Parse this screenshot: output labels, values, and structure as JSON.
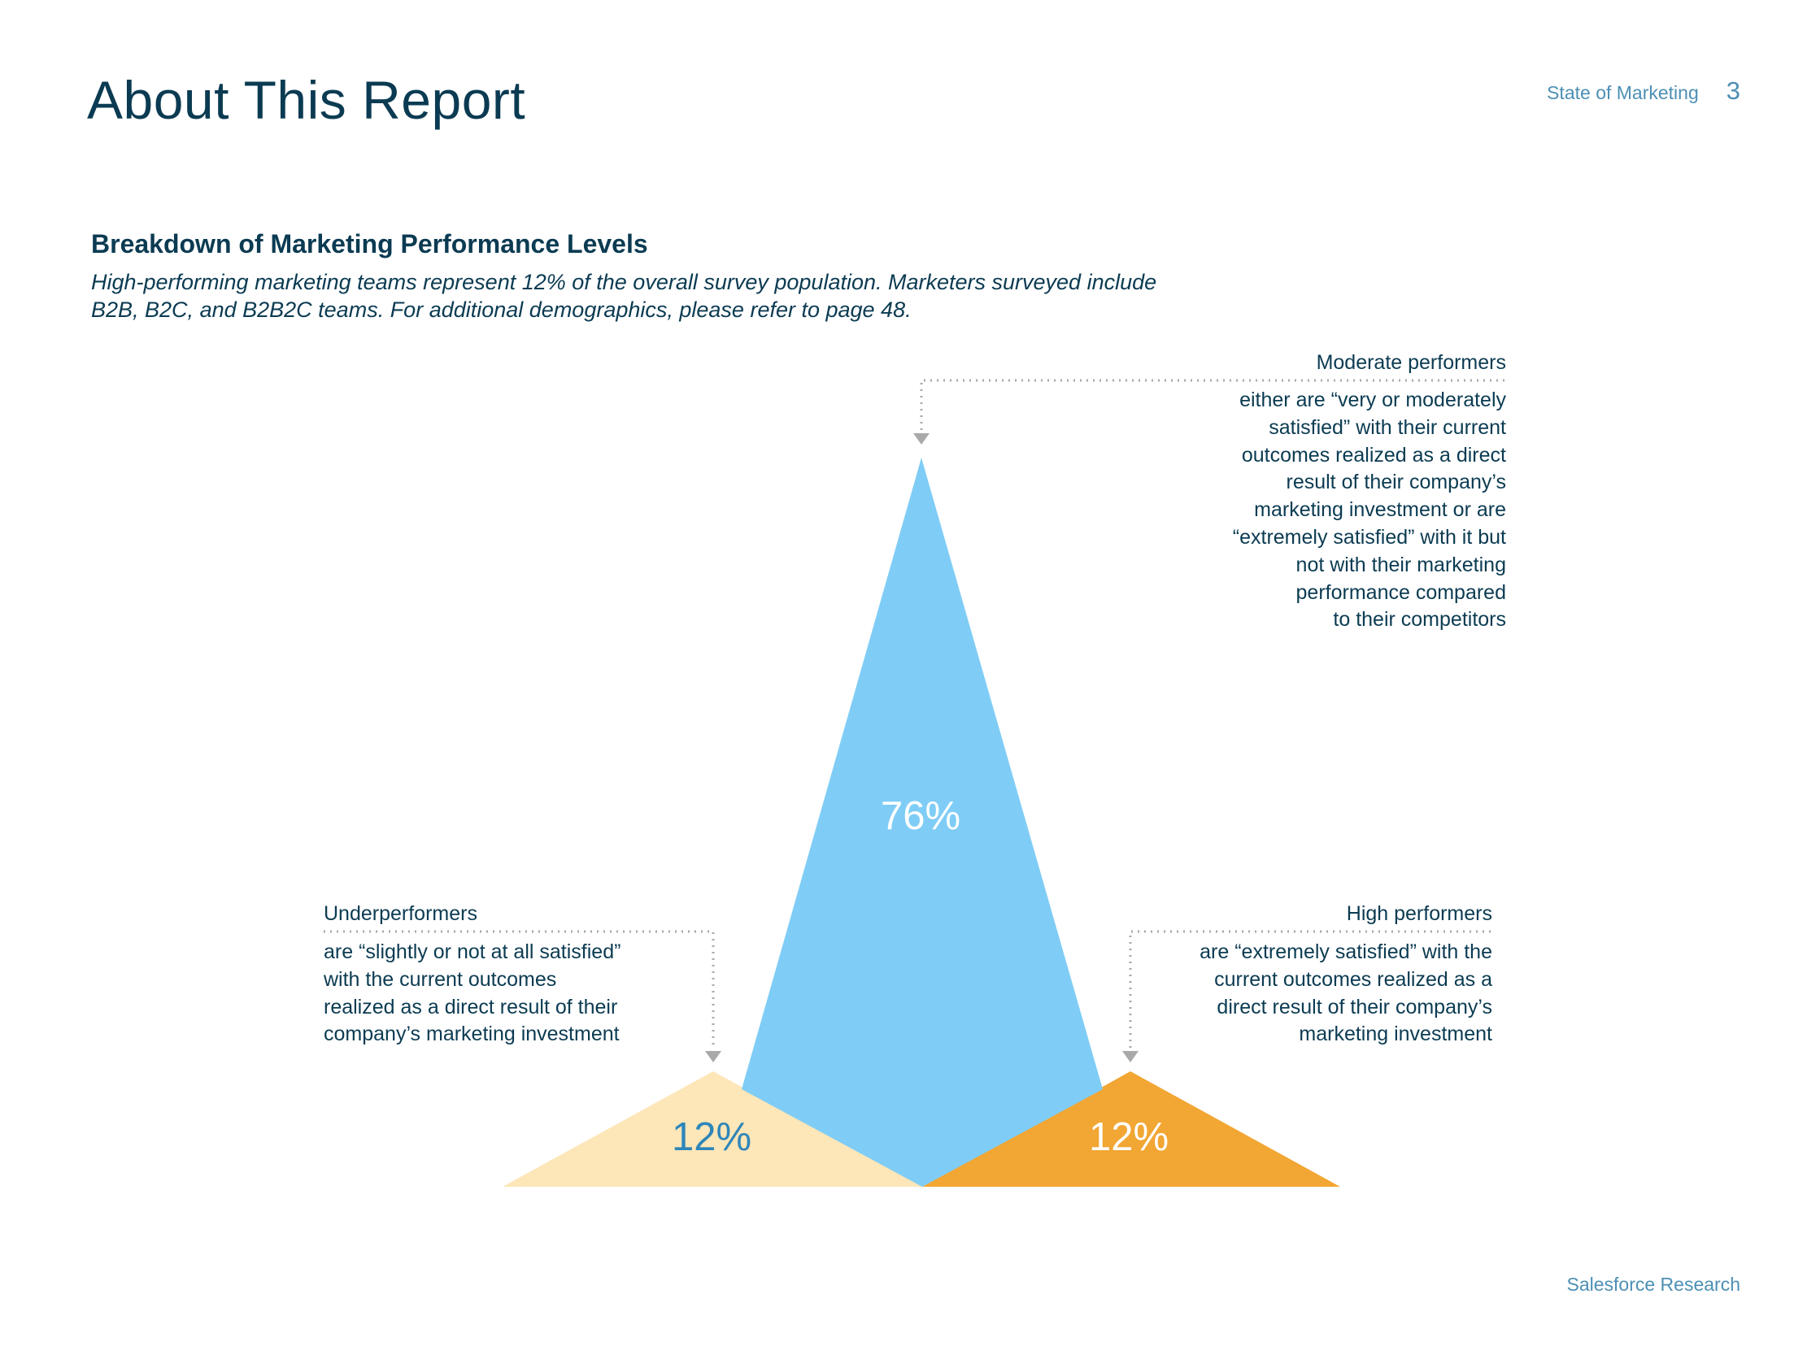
{
  "page": {
    "title": "About This Report",
    "report_name": "State of Marketing",
    "page_number": "3",
    "footer": "Salesforce Research"
  },
  "chart_data": {
    "type": "pie",
    "title": "Breakdown of Marketing Performance Levels",
    "subtitle": "High-performing marketing teams represent 12% of the overall survey population. Marketers surveyed include B2B, B2C, and B2B2C teams. For additional demographics, please refer to page 48.",
    "categories": [
      "Underperformers",
      "Moderate performers",
      "High performers"
    ],
    "values": [
      12,
      76,
      12
    ],
    "labels": [
      "12%",
      "76%",
      "12%"
    ],
    "colors": [
      "#fde6b8",
      "#7fcdf6",
      "#f2a633"
    ],
    "label_colors": [
      "#2e86b9",
      "#ffffff",
      "#ffffff"
    ],
    "annotations": [
      {
        "category": "Moderate performers",
        "heading": "Moderate performers",
        "text": "either are “very or moderately\nsatisfied” with their current\noutcomes realized as a direct\nresult of their company’s\nmarketing investment or are\n“extremely satisfied” with it but\nnot with their marketing\nperformance compared\nto their competitors"
      },
      {
        "category": "Underperformers",
        "heading": "Underperformers",
        "text": "are “slightly or not at all satisfied”\nwith the current outcomes\nrealized as a direct result of their\ncompany’s marketing investment"
      },
      {
        "category": "High performers",
        "heading": "High performers",
        "text": "are “extremely satisfied” with the\ncurrent outcomes realized as a\ndirect result of their company’s\nmarketing investment"
      }
    ]
  }
}
